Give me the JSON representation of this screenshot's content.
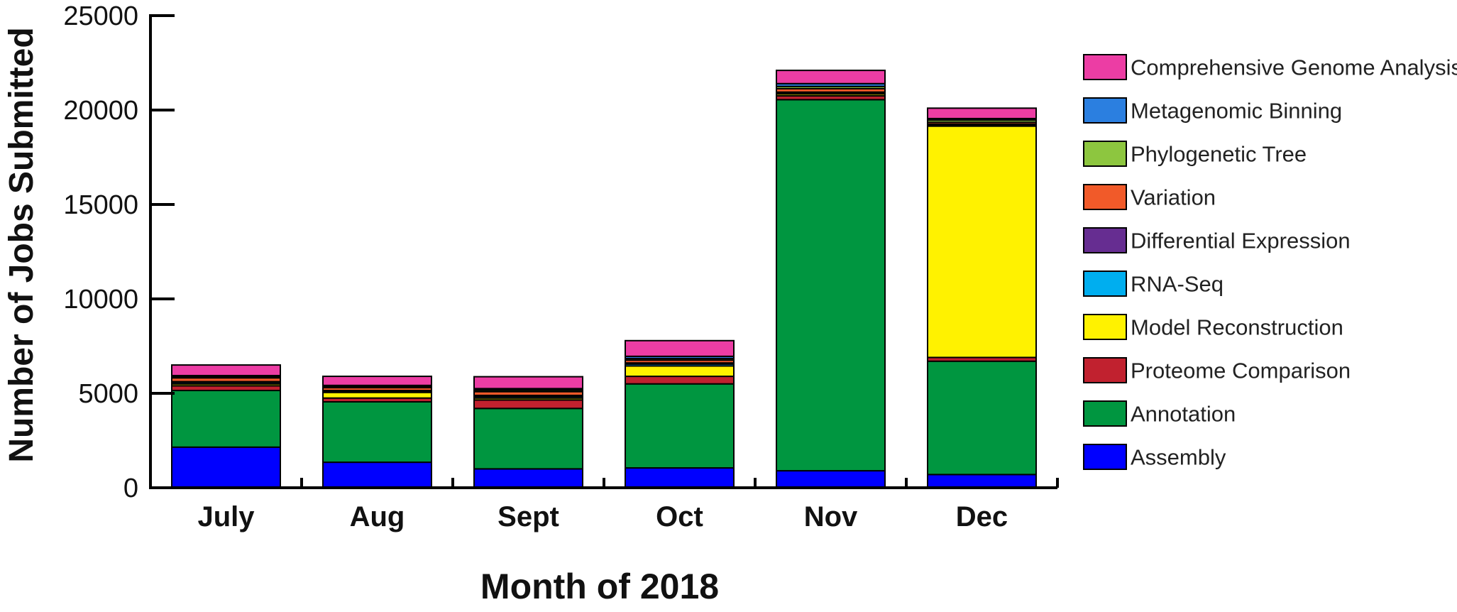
{
  "chart_data": {
    "type": "bar",
    "stacked": true,
    "xlabel": "Month of 2018",
    "ylabel": "Number of Jobs Submitted",
    "ylim": [
      0,
      25000
    ],
    "yticks": [
      0,
      5000,
      10000,
      15000,
      20000,
      25000
    ],
    "grid": false,
    "legend_position": "right",
    "categories": [
      "July",
      "Aug",
      "Sept",
      "Oct",
      "Nov",
      "Dec"
    ],
    "series": [
      {
        "name": "Assembly",
        "color": "#0000ff",
        "values": [
          2150,
          1350,
          1000,
          1050,
          900,
          700
        ]
      },
      {
        "name": "Annotation",
        "color": "#009640",
        "values": [
          3000,
          3200,
          3200,
          4450,
          19650,
          6000
        ]
      },
      {
        "name": "Proteome Comparison",
        "color": "#c1212f",
        "values": [
          250,
          200,
          450,
          400,
          200,
          200
        ]
      },
      {
        "name": "Model Reconstruction",
        "color": "#fff200",
        "values": [
          100,
          300,
          100,
          550,
          100,
          12250
        ]
      },
      {
        "name": "RNA-Seq",
        "color": "#00aeef",
        "values": [
          80,
          60,
          80,
          100,
          60,
          60
        ]
      },
      {
        "name": "Differential Expression",
        "color": "#662d91",
        "values": [
          40,
          40,
          60,
          60,
          40,
          40
        ]
      },
      {
        "name": "Variation",
        "color": "#f15a29",
        "values": [
          200,
          150,
          200,
          150,
          180,
          100
        ]
      },
      {
        "name": "Phylogenetic Tree",
        "color": "#8dc63f",
        "values": [
          60,
          60,
          80,
          80,
          120,
          120
        ]
      },
      {
        "name": "Metagenomic Binning",
        "color": "#2b7fe0",
        "values": [
          60,
          60,
          80,
          120,
          150,
          80
        ]
      },
      {
        "name": "Comprehensive Genome Analysis",
        "color": "#ec3da4",
        "values": [
          560,
          480,
          630,
          830,
          700,
          550
        ]
      }
    ]
  }
}
